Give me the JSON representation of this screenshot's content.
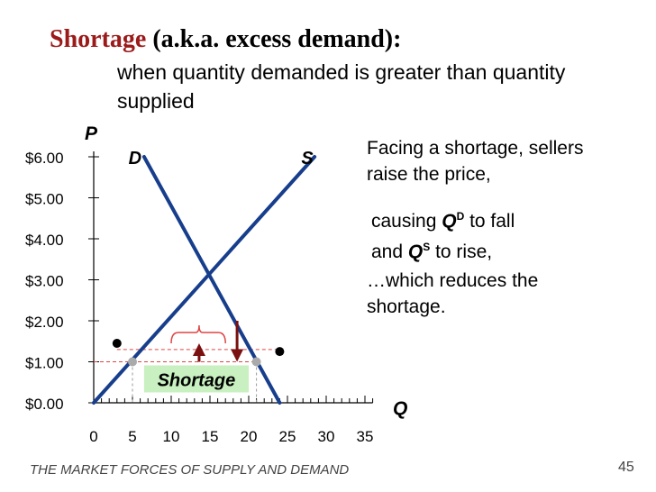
{
  "slide": {
    "title_accent": "Shortage",
    "title_rest": "(a.k.a. excess demand):",
    "subtitle": "when quantity demanded is greater than quantity supplied",
    "note1": "Facing a shortage, sellers raise the price,",
    "note2_a": "causing ",
    "note2_q1": "Q",
    "note2_s1": "D",
    "note2_b": " to fall",
    "note2_c": "and ",
    "note2_q2": "Q",
    "note2_s2": "S",
    "note2_d": " to rise,",
    "note3": "…which reduces the shortage.",
    "footer": "THE MARKET FORCES OF SUPPLY AND DEMAND",
    "page_number": "45"
  },
  "chart_data": {
    "type": "line",
    "ylabel": "P",
    "xlabel": "Q",
    "x_ticks": [
      "0",
      "5",
      "10",
      "15",
      "20",
      "25",
      "30",
      "35"
    ],
    "y_ticks": [
      "$0.00",
      "$1.00",
      "$2.00",
      "$3.00",
      "$4.00",
      "$5.00",
      "$6.00"
    ],
    "xlim": [
      0,
      35
    ],
    "ylim": [
      0,
      6
    ],
    "series": [
      {
        "name": "D",
        "x": [
          6.5,
          24
        ],
        "y": [
          6,
          0
        ]
      },
      {
        "name": "S",
        "x": [
          0,
          28.5
        ],
        "y": [
          0,
          6
        ]
      }
    ],
    "price_levels": [
      1.0,
      1.3
    ],
    "gray_points": [
      {
        "x": 5,
        "y": 1.0
      },
      {
        "x": 21,
        "y": 1.0
      }
    ],
    "black_points": [
      {
        "x": 3,
        "y": 1.45
      },
      {
        "x": 24,
        "y": 1.25
      }
    ],
    "arrows": [
      {
        "direction": "down",
        "x": 18.5,
        "from": 2.0,
        "to": 1.0
      },
      {
        "direction": "up",
        "x": 13.6,
        "from": 1.0,
        "to": 1.45
      }
    ],
    "shortage_label": "Shortage",
    "colors": {
      "curves": "#173e8c",
      "dashed": "#d44",
      "arrows": "#7a1010",
      "box": "#c8f0c0"
    }
  }
}
